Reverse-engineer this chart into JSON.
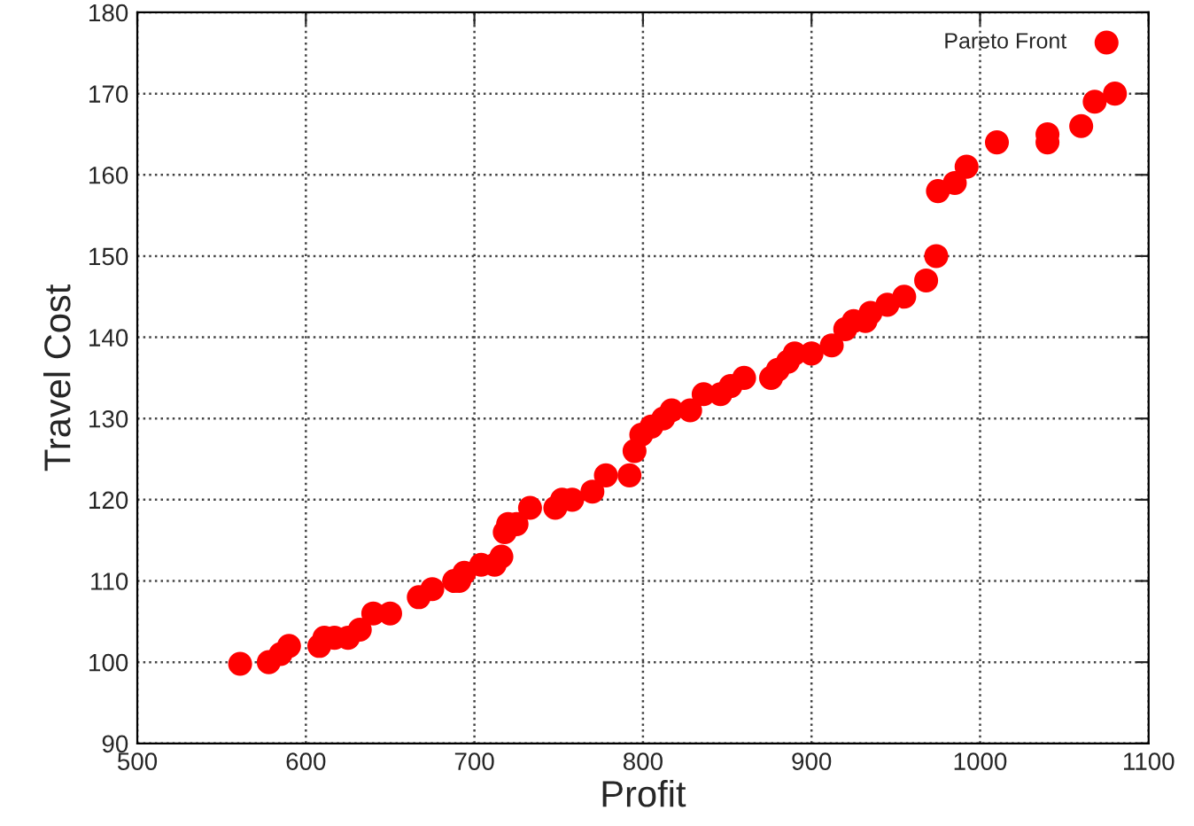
{
  "chart_data": {
    "type": "scatter",
    "xlabel": "Profit",
    "ylabel": "Travel Cost",
    "xlim": [
      500,
      1100
    ],
    "xticks": [
      500,
      600,
      700,
      800,
      900,
      1000,
      1100
    ],
    "ylim": [
      90,
      180
    ],
    "yticks": [
      90,
      100,
      110,
      120,
      130,
      140,
      150,
      160,
      170,
      180
    ],
    "grid": true,
    "legend": "top right",
    "marker": "circle",
    "series": [
      {
        "name": "Pareto Front",
        "color": "#ff0000",
        "x": [
          561,
          578,
          585,
          590,
          608,
          611,
          617,
          625,
          632,
          640,
          650,
          667,
          675,
          688,
          691,
          694,
          704,
          712,
          716,
          718,
          720,
          725,
          733,
          748,
          752,
          758,
          770,
          778,
          792,
          795,
          799,
          805,
          812,
          817,
          828,
          836,
          846,
          852,
          860,
          876,
          880,
          886,
          890,
          900,
          912,
          920,
          925,
          932,
          935,
          945,
          955,
          968,
          974,
          975,
          985,
          992,
          1010,
          1040,
          1040,
          1060,
          1068,
          1080
        ],
        "values": [
          99.8,
          100,
          101,
          102,
          102,
          103,
          103,
          103,
          104,
          106,
          106,
          108,
          109,
          110,
          110,
          111,
          112,
          112,
          113,
          116,
          117,
          117,
          119,
          119,
          120,
          120,
          121,
          123,
          123,
          126,
          128,
          129,
          130,
          131,
          131,
          133,
          133,
          134,
          135,
          135,
          136,
          137,
          138,
          138,
          139,
          141,
          142,
          142,
          143,
          144,
          145,
          147,
          150,
          158,
          159,
          161,
          164,
          164,
          165,
          166,
          169,
          170
        ]
      }
    ]
  }
}
